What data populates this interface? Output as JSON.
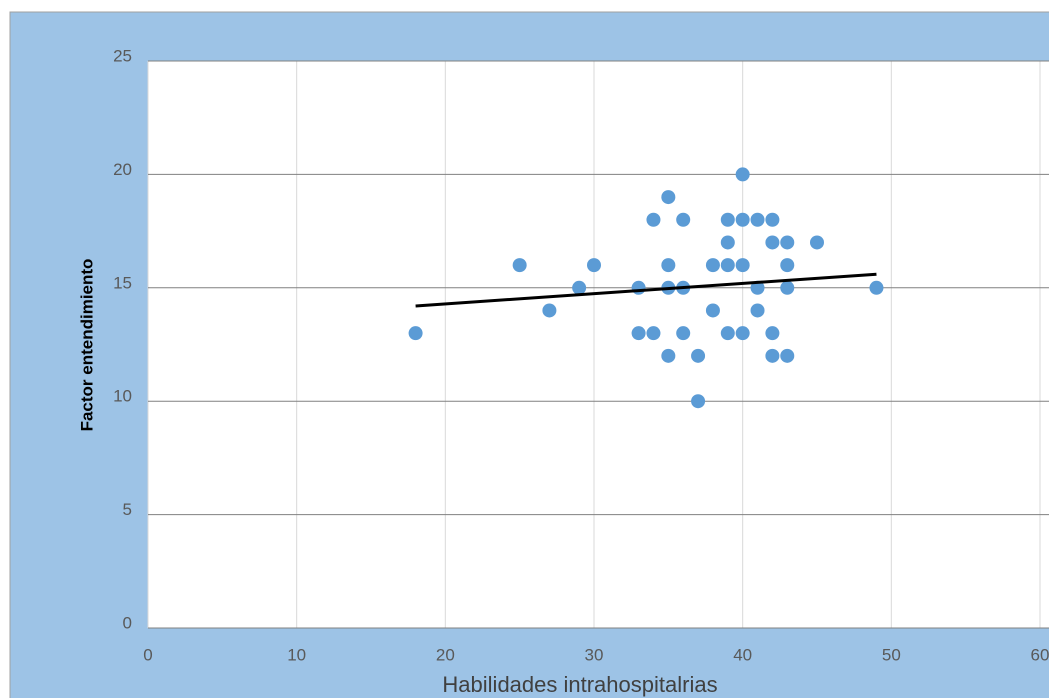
{
  "chart_data": {
    "type": "scatter",
    "x_label": "Habilidades intrahospitalrias",
    "y_label": "Factor entendimiento",
    "series": [
      {
        "color": "#5b9bd5",
        "x": [
          18,
          25,
          27,
          29,
          30,
          33,
          33,
          34,
          34,
          35,
          35,
          35,
          35,
          36,
          36,
          36,
          37,
          37,
          38,
          38,
          39,
          39,
          39,
          39,
          40,
          40,
          40,
          40,
          41,
          41,
          41,
          42,
          42,
          42,
          42,
          43,
          43,
          43,
          43,
          45,
          49
        ],
        "values": [
          13,
          16,
          14,
          15,
          16,
          15,
          13,
          13,
          18,
          19,
          16,
          15,
          12,
          18,
          15,
          13,
          12,
          10,
          16,
          14,
          18,
          17,
          16,
          13,
          20,
          18,
          16,
          13,
          18,
          15,
          14,
          18,
          17,
          13,
          12,
          17,
          16,
          15,
          12,
          17,
          15
        ]
      }
    ],
    "trendline": {
      "color": "#000000",
      "x": [
        18,
        49
      ],
      "values": [
        14.2,
        15.6
      ]
    },
    "xlim": [
      0,
      60
    ],
    "xticks": [
      0,
      10,
      20,
      30,
      40,
      50,
      60
    ],
    "ylim": [
      0,
      25
    ],
    "yticks": [
      0,
      5,
      10,
      15,
      20,
      25
    ],
    "grid": true
  }
}
